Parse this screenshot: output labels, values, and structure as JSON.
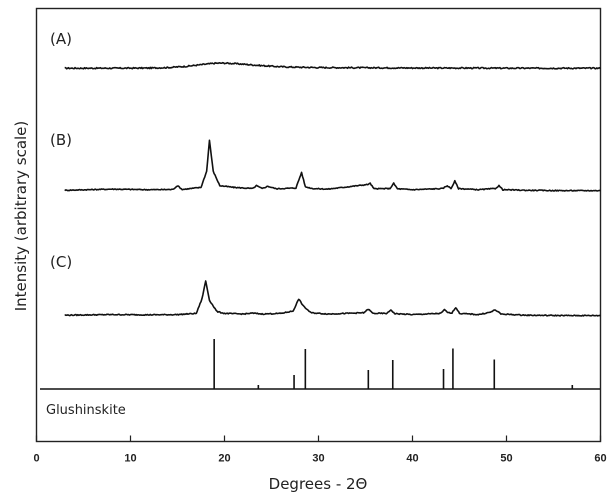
{
  "chart_data": {
    "type": "line",
    "xlabel": "Degrees - 2Θ",
    "ylabel": "Intensity (arbitrary scale)",
    "xlim": [
      0,
      60
    ],
    "xticks": [
      "0",
      "10",
      "20",
      "30",
      "40",
      "50",
      "60"
    ],
    "grid": false,
    "series": [
      {
        "name": "(A)",
        "x": [
          3,
          6,
          9,
          12,
          14,
          16,
          18,
          19,
          20,
          21,
          22,
          24,
          26,
          28,
          30,
          34,
          38,
          42,
          46,
          50,
          55,
          60
        ],
        "y": [
          0.05,
          0.05,
          0.05,
          0.06,
          0.09,
          0.17,
          0.3,
          0.36,
          0.37,
          0.34,
          0.3,
          0.21,
          0.14,
          0.11,
          0.09,
          0.08,
          0.07,
          0.06,
          0.06,
          0.05,
          0.05,
          0.05
        ]
      },
      {
        "name": "(B)",
        "x": [
          3,
          8,
          12,
          14.5,
          15,
          15.5,
          17.5,
          18.1,
          18.4,
          18.8,
          19.5,
          21,
          23,
          23.4,
          24,
          24.6,
          25.5,
          27.6,
          28.2,
          28.6,
          29.4,
          31,
          35.2,
          35.5,
          35.9,
          37.6,
          38,
          38.4,
          40,
          43.2,
          43.7,
          44.1,
          44.5,
          44.9,
          47,
          48.8,
          49.2,
          49.6,
          52,
          56,
          60
        ],
        "y": [
          0.15,
          0.25,
          0.2,
          0.22,
          0.55,
          0.22,
          0.4,
          1.8,
          4.5,
          1.8,
          0.55,
          0.4,
          0.3,
          0.55,
          0.3,
          0.5,
          0.28,
          0.35,
          1.7,
          0.45,
          0.3,
          0.25,
          0.65,
          0.75,
          0.28,
          0.3,
          0.75,
          0.28,
          0.2,
          0.3,
          0.55,
          0.3,
          0.95,
          0.3,
          0.2,
          0.3,
          0.55,
          0.2,
          0.15,
          0.12,
          0.12
        ]
      },
      {
        "name": "(C)",
        "x": [
          3,
          8,
          12,
          15,
          17,
          17.6,
          18,
          18.4,
          19.2,
          20,
          22,
          23,
          24,
          26,
          27.3,
          27.9,
          28.4,
          29.2,
          31,
          34.8,
          35.3,
          35.8,
          37.3,
          37.7,
          38.1,
          40,
          43,
          43.4,
          43.8,
          44.2,
          44.6,
          45,
          47,
          48.3,
          48.8,
          49.4,
          52,
          56,
          60
        ],
        "y": [
          0.15,
          0.2,
          0.18,
          0.2,
          0.3,
          1.5,
          3.0,
          1.4,
          0.45,
          0.3,
          0.25,
          0.32,
          0.25,
          0.3,
          0.5,
          1.5,
          0.9,
          0.35,
          0.25,
          0.35,
          0.65,
          0.3,
          0.3,
          0.6,
          0.28,
          0.2,
          0.3,
          0.6,
          0.35,
          0.35,
          0.8,
          0.3,
          0.2,
          0.4,
          0.6,
          0.25,
          0.15,
          0.12,
          0.12
        ]
      }
    ],
    "reference": {
      "name": "Glushinskite",
      "x": [
        18.9,
        23.6,
        27.4,
        28.6,
        35.3,
        37.9,
        43.3,
        44.3,
        48.7,
        57.0
      ],
      "intensity": [
        100,
        8,
        28,
        80,
        38,
        58,
        40,
        81,
        59,
        8
      ]
    },
    "colors": {
      "line": "#111111",
      "axis": "#222222",
      "background": "#ffffff"
    }
  }
}
